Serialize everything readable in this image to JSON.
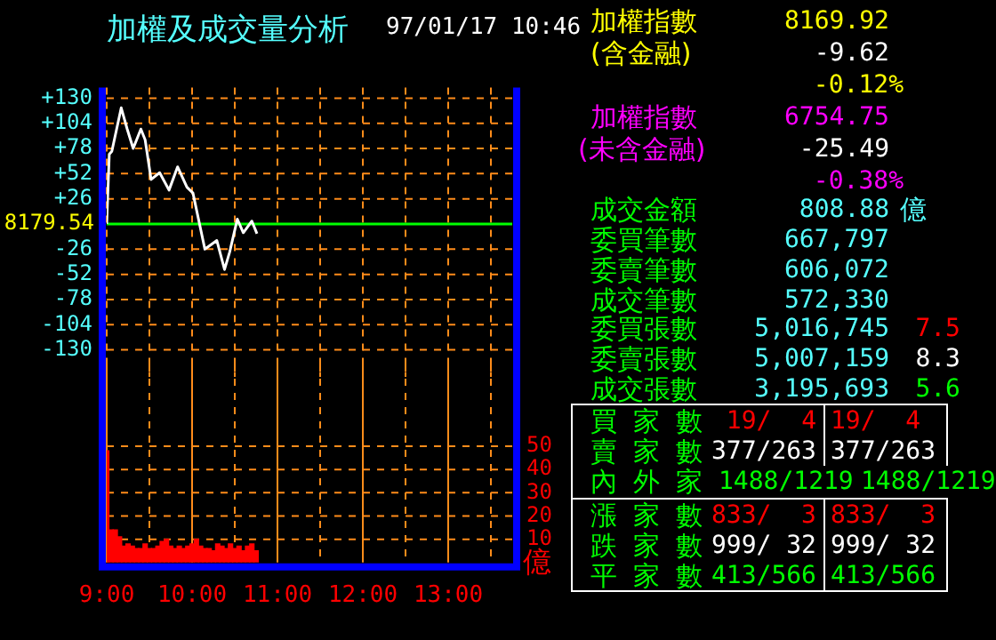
{
  "chart_data": [
    {
      "type": "line",
      "title": "加權及成交量分析",
      "subtitle": "97/01/17 10:46",
      "series": [
        {
          "color": "#ffffff",
          "x": [
            9,
            9.03,
            9.06,
            9.17,
            9.24,
            9.31,
            9.4,
            9.45,
            9.52,
            9.62,
            9.73,
            9.83,
            9.94,
            10.01,
            10.15,
            10.29,
            10.38,
            10.44,
            10.53,
            10.6,
            10.7,
            10.76
          ],
          "values": [
            0,
            72,
            75,
            120,
            98,
            78,
            98,
            87,
            46,
            53,
            35,
            59,
            38,
            32,
            -26,
            -17,
            -47,
            -29,
            5,
            -9,
            3,
            -10
          ]
        }
      ],
      "xlim": [
        9,
        13.75
      ],
      "xticks": [
        {
          "value": 9,
          "label": null
        },
        {
          "value": 9.5,
          "label": null
        },
        {
          "value": 10,
          "label": null
        },
        {
          "value": 10.5,
          "label": null
        },
        {
          "value": 11,
          "label": null
        },
        {
          "value": 11.5,
          "label": null
        },
        {
          "value": 12,
          "label": null
        },
        {
          "value": 12.5,
          "label": null
        },
        {
          "value": 13,
          "label": null
        },
        {
          "value": 13.5,
          "label": null
        }
      ],
      "ylim": [
        -130,
        130
      ],
      "yticks": [
        {
          "value": 130,
          "label": "+130"
        },
        {
          "value": 104,
          "label": "+104"
        },
        {
          "value": 78,
          "label": "+78"
        },
        {
          "value": 52,
          "label": "+52"
        },
        {
          "value": 26,
          "label": "+26"
        },
        {
          "value": 0,
          "label": null
        },
        -26,
        -52,
        -78,
        -104,
        -130
      ],
      "ref_lines": [
        {
          "axis": "y",
          "value": 0,
          "color": "#00ff00"
        }
      ],
      "annotations": [
        "8179.54"
      ],
      "tick_labels": "y",
      "grid": true
    },
    {
      "type": "bar",
      "ylabel": "億",
      "color": "#ff0000",
      "x": [
        9,
        9.05,
        9.1,
        9.15,
        9.2,
        9.25,
        9.3,
        9.35,
        9.4,
        9.45,
        9.5,
        9.55,
        9.6,
        9.65,
        9.7,
        9.75,
        9.8,
        9.85,
        9.9,
        9.95,
        10,
        10.05,
        10.1,
        10.15,
        10.2,
        10.25,
        10.3,
        10.35,
        10.4,
        10.45,
        10.5,
        10.55,
        10.6,
        10.65,
        10.7,
        10.75
      ],
      "values": [
        48,
        14,
        14,
        11,
        7,
        8,
        7,
        6,
        6,
        8,
        6,
        6,
        7,
        9,
        10,
        7,
        6,
        7,
        6,
        7,
        8,
        10,
        7,
        6,
        6,
        5,
        8,
        7,
        6,
        8,
        6,
        7,
        5,
        7,
        8,
        5
      ],
      "xlim": [
        9,
        13.75
      ],
      "xticks": [
        {
          "value": 9,
          "label": "9:00"
        },
        {
          "value": 9.5,
          "label": null
        },
        {
          "value": 10,
          "label": "10:00"
        },
        {
          "value": 10.5,
          "label": null
        },
        {
          "value": 11,
          "label": "11:00"
        },
        {
          "value": 11.5,
          "label": null
        },
        {
          "value": 12,
          "label": "12:00"
        },
        {
          "value": 12.5,
          "label": null
        },
        {
          "value": 13,
          "label": "13:00"
        },
        {
          "value": 13.5,
          "label": null
        }
      ],
      "ylim": [
        0,
        50
      ],
      "yticks": [
        10,
        20,
        30,
        40,
        50
      ],
      "grid": true
    },
    {
      "type": "other",
      "annotations": [
        "加權指數",
        "(含金融)",
        "8169.92",
        "-9.62",
        "-0.12%",
        "加權指數",
        "(未含金融)",
        "6754.75",
        "-25.49",
        "-0.38%",
        "成交金額",
        "808.88",
        "億",
        "委買筆數",
        "667,797",
        "委賣筆數",
        "606,072",
        "成交筆數",
        "572,330",
        "委買張數",
        "5,016,745",
        "7.5",
        "委賣張數",
        "5,007,159",
        "8.3",
        "成交張數",
        "3,195,693",
        "5.6",
        "買家數",
        "19/  4",
        "19/  4",
        "賣家數",
        "377/263",
        "377/263",
        "內外家",
        "1488/1219",
        "1488/1219",
        "漲家數",
        "833/  3",
        "833/  3",
        "跌家數",
        "999/ 32",
        "999/ 32",
        "平家數",
        "413/566",
        "413/566"
      ]
    }
  ]
}
